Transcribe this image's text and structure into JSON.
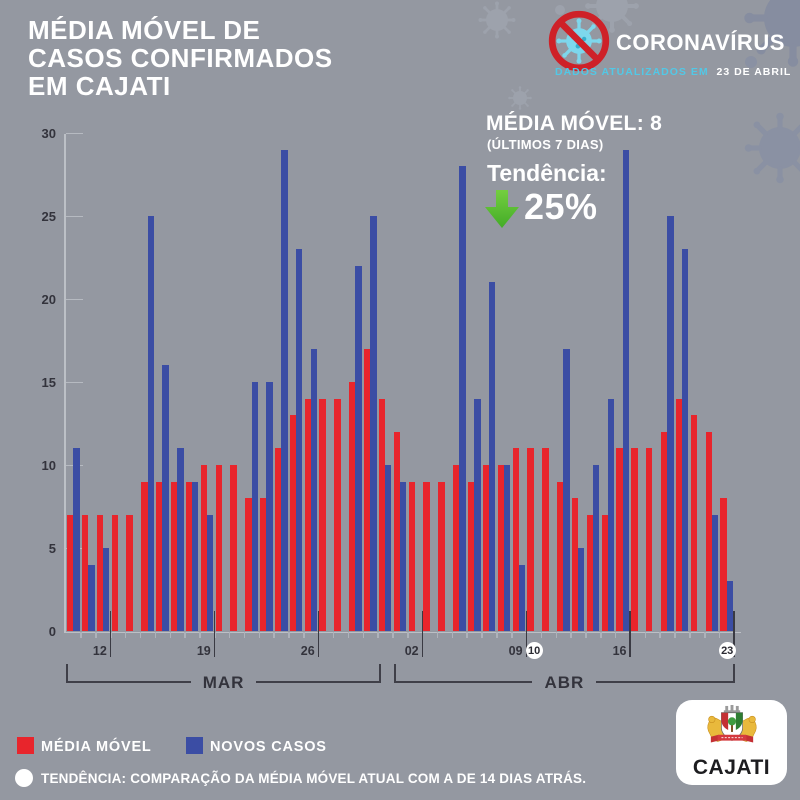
{
  "header": {
    "title_lines": [
      "MÉDIA MÓVEL DE",
      "CASOS CONFIRMADOS",
      "EM CAJATI"
    ],
    "brand": "CORONAVÍRUS",
    "updated_prefix": "DADOS ATUALIZADOS EM",
    "updated_date": "23 DE ABRIL"
  },
  "stats": {
    "ma_label": "MÉDIA MÓVEL:",
    "ma_value": "8",
    "ma_sub": "(ÚLTIMOS 7 DIAS)",
    "trend_label": "Tendência:",
    "trend_value": "25%",
    "trend_direction": "down"
  },
  "chart_data": {
    "type": "bar",
    "title": "MÉDIA MÓVEL DE CASOS CONFIRMADOS EM CAJATI",
    "ylabel": "",
    "xlabel": "",
    "ylim": [
      0,
      30
    ],
    "yticks": [
      0,
      5,
      10,
      15,
      20,
      25,
      30
    ],
    "grid": "tick-stubs-only",
    "legend_position": "bottom-left",
    "categories": [
      "10/03",
      "11/03",
      "12/03",
      "13/03",
      "14/03",
      "15/03",
      "16/03",
      "17/03",
      "18/03",
      "19/03",
      "20/03",
      "21/03",
      "22/03",
      "23/03",
      "24/03",
      "25/03",
      "26/03",
      "27/03",
      "28/03",
      "29/03",
      "30/03",
      "31/03",
      "01/04",
      "02/04",
      "03/04",
      "04/04",
      "05/04",
      "06/04",
      "07/04",
      "08/04",
      "09/04",
      "10/04",
      "11/04",
      "12/04",
      "13/04",
      "14/04",
      "15/04",
      "16/04",
      "17/04",
      "18/04",
      "19/04",
      "20/04",
      "21/04",
      "22/04",
      "23/04"
    ],
    "series": [
      {
        "name": "MÉDIA MÓVEL",
        "color": "#E8252C",
        "values": [
          7,
          7,
          7,
          7,
          7,
          9,
          9,
          9,
          9,
          10,
          10,
          10,
          8,
          8,
          11,
          13,
          14,
          14,
          14,
          15,
          17,
          14,
          12,
          9,
          9,
          9,
          10,
          9,
          10,
          10,
          11,
          11,
          11,
          9,
          8,
          7,
          7,
          11,
          11,
          11,
          12,
          14,
          13,
          12,
          8
        ]
      },
      {
        "name": "NOVOS CASOS",
        "color": "#3B4DA4",
        "values": [
          11,
          4,
          5,
          0,
          0,
          25,
          16,
          11,
          9,
          7,
          0,
          0,
          15,
          15,
          29,
          23,
          17,
          0,
          0,
          22,
          25,
          10,
          9,
          0,
          0,
          0,
          28,
          14,
          21,
          10,
          4,
          0,
          0,
          17,
          5,
          10,
          14,
          29,
          0,
          0,
          25,
          23,
          0,
          7,
          3
        ]
      }
    ],
    "x_week_ticks": [
      {
        "label": "12",
        "day_index": 2,
        "circled": false,
        "line": true
      },
      {
        "label": "19",
        "day_index": 9,
        "circled": false,
        "line": true
      },
      {
        "label": "26",
        "day_index": 16,
        "circled": false,
        "line": true
      },
      {
        "label": "02",
        "day_index": 23,
        "circled": false,
        "line": true
      },
      {
        "label": "09",
        "day_index": 30,
        "circled": false,
        "line": true
      },
      {
        "label": "10",
        "day_index": 31,
        "circled": true,
        "line": false
      },
      {
        "label": "16",
        "day_index": 37,
        "circled": false,
        "line": true
      },
      {
        "label": "23",
        "day_index": 44,
        "circled": true,
        "line": true
      }
    ],
    "month_groups": [
      {
        "label": "MAR",
        "start": 0,
        "end": 21
      },
      {
        "label": "ABR",
        "start": 22,
        "end": 44
      }
    ]
  },
  "legend": [
    {
      "label": "MÉDIA MÓVEL",
      "color": "#E8252C"
    },
    {
      "label": "NOVOS CASOS",
      "color": "#3B4DA4"
    }
  ],
  "note": "TENDÊNCIA: COMPARAÇÃO DA MÉDIA MÓVEL ATUAL COM A DE 14 DIAS ATRÁS.",
  "logo": {
    "city": "CAJATI"
  },
  "colors": {
    "background": "#9498A1",
    "bar_red": "#E8252C",
    "bar_blue": "#3B4DA4",
    "text_dark": "#33333C",
    "text_white": "#FFFFFF",
    "accent_cyan": "#52C8E6",
    "accent_green": "#53BE33",
    "prohibition_red": "#CE2128",
    "virus_cyan": "#7DD7EC"
  }
}
